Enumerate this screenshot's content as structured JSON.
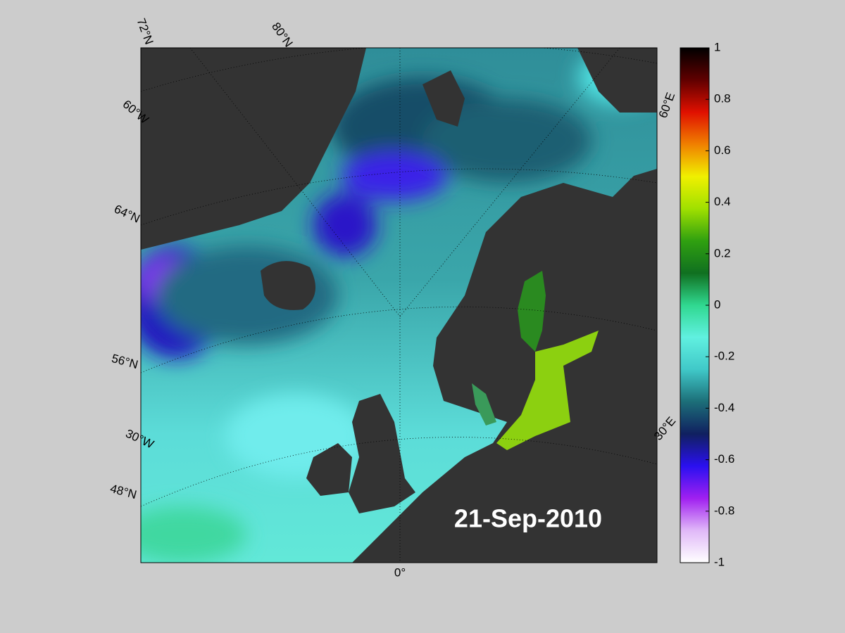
{
  "map": {
    "date": "21-Sep-2010",
    "graticule_labels": [
      "72°N",
      "80°N",
      "60°W",
      "64°N",
      "56°N",
      "30°W",
      "48°N",
      "0°",
      "60°E",
      "30°E"
    ],
    "colorbar": {
      "lim": [
        -1,
        1
      ],
      "ticks": [
        -1,
        -0.8,
        -0.6,
        -0.4,
        -0.2,
        0,
        0.2,
        0.4,
        0.6,
        0.8,
        1
      ],
      "colormap": [
        "#ffffff",
        "#e0b8f8",
        "#a020f0",
        "#2a10f0",
        "#102060",
        "#1c6e78",
        "#40c8c8",
        "#60f0e0",
        "#30d890",
        "#107020",
        "#30a010",
        "#a0e000",
        "#f0f000",
        "#f08000",
        "#e01000",
        "#600000",
        "#000000"
      ]
    }
  }
}
